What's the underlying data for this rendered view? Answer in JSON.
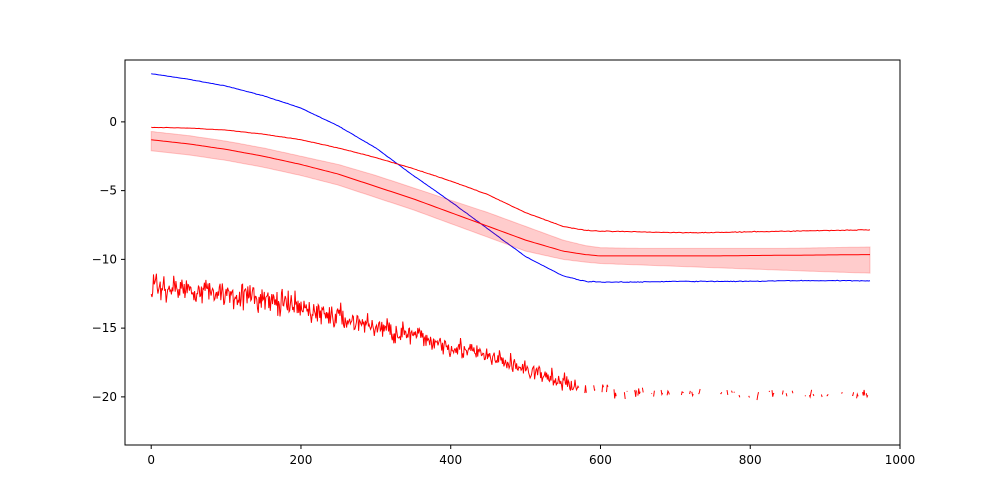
{
  "chart_data": {
    "type": "line",
    "title": "",
    "xlabel": "",
    "ylabel": "",
    "xlim": [
      -35,
      1000
    ],
    "ylim": [
      -23.5,
      4.5
    ],
    "xticks": [
      0,
      200,
      400,
      600,
      800,
      1000
    ],
    "xtick_labels": [
      "0",
      "200",
      "400",
      "600",
      "800",
      "1000"
    ],
    "yticks": [
      0,
      -5,
      -10,
      -15,
      -20
    ],
    "ytick_labels": [
      "0",
      "−5",
      "−10",
      "−15",
      "−20"
    ],
    "grid": false,
    "legend": "none",
    "series": [
      {
        "kind": "line",
        "color": "#0000ff",
        "x": [
          0,
          50,
          100,
          150,
          200,
          250,
          300,
          350,
          400,
          450,
          500,
          550,
          580,
          600,
          650,
          700,
          750,
          800,
          850,
          900,
          960
        ],
        "y": [
          3.5,
          3.1,
          2.6,
          1.9,
          1.0,
          -0.3,
          -1.9,
          -3.9,
          -5.8,
          -7.8,
          -9.8,
          -11.2,
          -11.6,
          -11.65,
          -11.65,
          -11.6,
          -11.6,
          -11.6,
          -11.55,
          -11.55,
          -11.55
        ]
      },
      {
        "kind": "line",
        "color": "#ff0000",
        "x": [
          0,
          50,
          100,
          150,
          200,
          250,
          300,
          350,
          400,
          450,
          500,
          550,
          580,
          600,
          650,
          700,
          750,
          800,
          850,
          900,
          960
        ],
        "y": [
          -0.4,
          -0.45,
          -0.6,
          -0.9,
          -1.3,
          -1.9,
          -2.6,
          -3.4,
          -4.3,
          -5.3,
          -6.6,
          -7.6,
          -7.9,
          -7.95,
          -8.0,
          -8.05,
          -8.05,
          -8.0,
          -7.95,
          -7.9,
          -7.85
        ]
      },
      {
        "kind": "band",
        "color": "#ff0000",
        "x": [
          0,
          50,
          100,
          150,
          200,
          250,
          300,
          350,
          400,
          450,
          500,
          550,
          580,
          600,
          650,
          700,
          750,
          800,
          850,
          900,
          960
        ],
        "y": [
          -1.3,
          -1.6,
          -2.0,
          -2.5,
          -3.1,
          -3.8,
          -4.7,
          -5.6,
          -6.6,
          -7.6,
          -8.6,
          -9.4,
          -9.65,
          -9.75,
          -9.75,
          -9.75,
          -9.75,
          -9.72,
          -9.7,
          -9.68,
          -9.65
        ],
        "upper": [
          -0.7,
          -1.0,
          -1.4,
          -1.9,
          -2.5,
          -3.1,
          -3.9,
          -4.8,
          -5.7,
          -6.6,
          -7.6,
          -8.6,
          -9.0,
          -9.15,
          -9.2,
          -9.2,
          -9.2,
          -9.2,
          -9.2,
          -9.15,
          -9.1
        ],
        "lower": [
          -2.1,
          -2.4,
          -2.8,
          -3.3,
          -3.9,
          -4.6,
          -5.5,
          -6.4,
          -7.4,
          -8.4,
          -9.4,
          -10.0,
          -10.2,
          -10.3,
          -10.4,
          -10.5,
          -10.6,
          -10.7,
          -10.8,
          -10.9,
          -11.0
        ]
      },
      {
        "kind": "noisy",
        "color": "#ff0000",
        "x": [
          0,
          60,
          120,
          180,
          240,
          300,
          360,
          420,
          480,
          530,
          570,
          620,
          660,
          700,
          760,
          820,
          880,
          960
        ],
        "y": [
          -12.0,
          -12.2,
          -12.6,
          -13.3,
          -14.1,
          -14.9,
          -15.7,
          -16.6,
          -17.6,
          -18.6,
          -19.3,
          -19.6,
          -19.7,
          -19.7,
          -19.8,
          -19.8,
          -19.8,
          -19.8
        ],
        "noise": [
          1.4,
          1.4,
          1.4,
          1.4,
          1.3,
          1.3,
          1.2,
          1.1,
          1.0,
          0.9,
          0.8,
          0.6,
          0.6,
          0.5,
          0.5,
          0.5,
          0.5,
          0.5
        ]
      }
    ]
  }
}
